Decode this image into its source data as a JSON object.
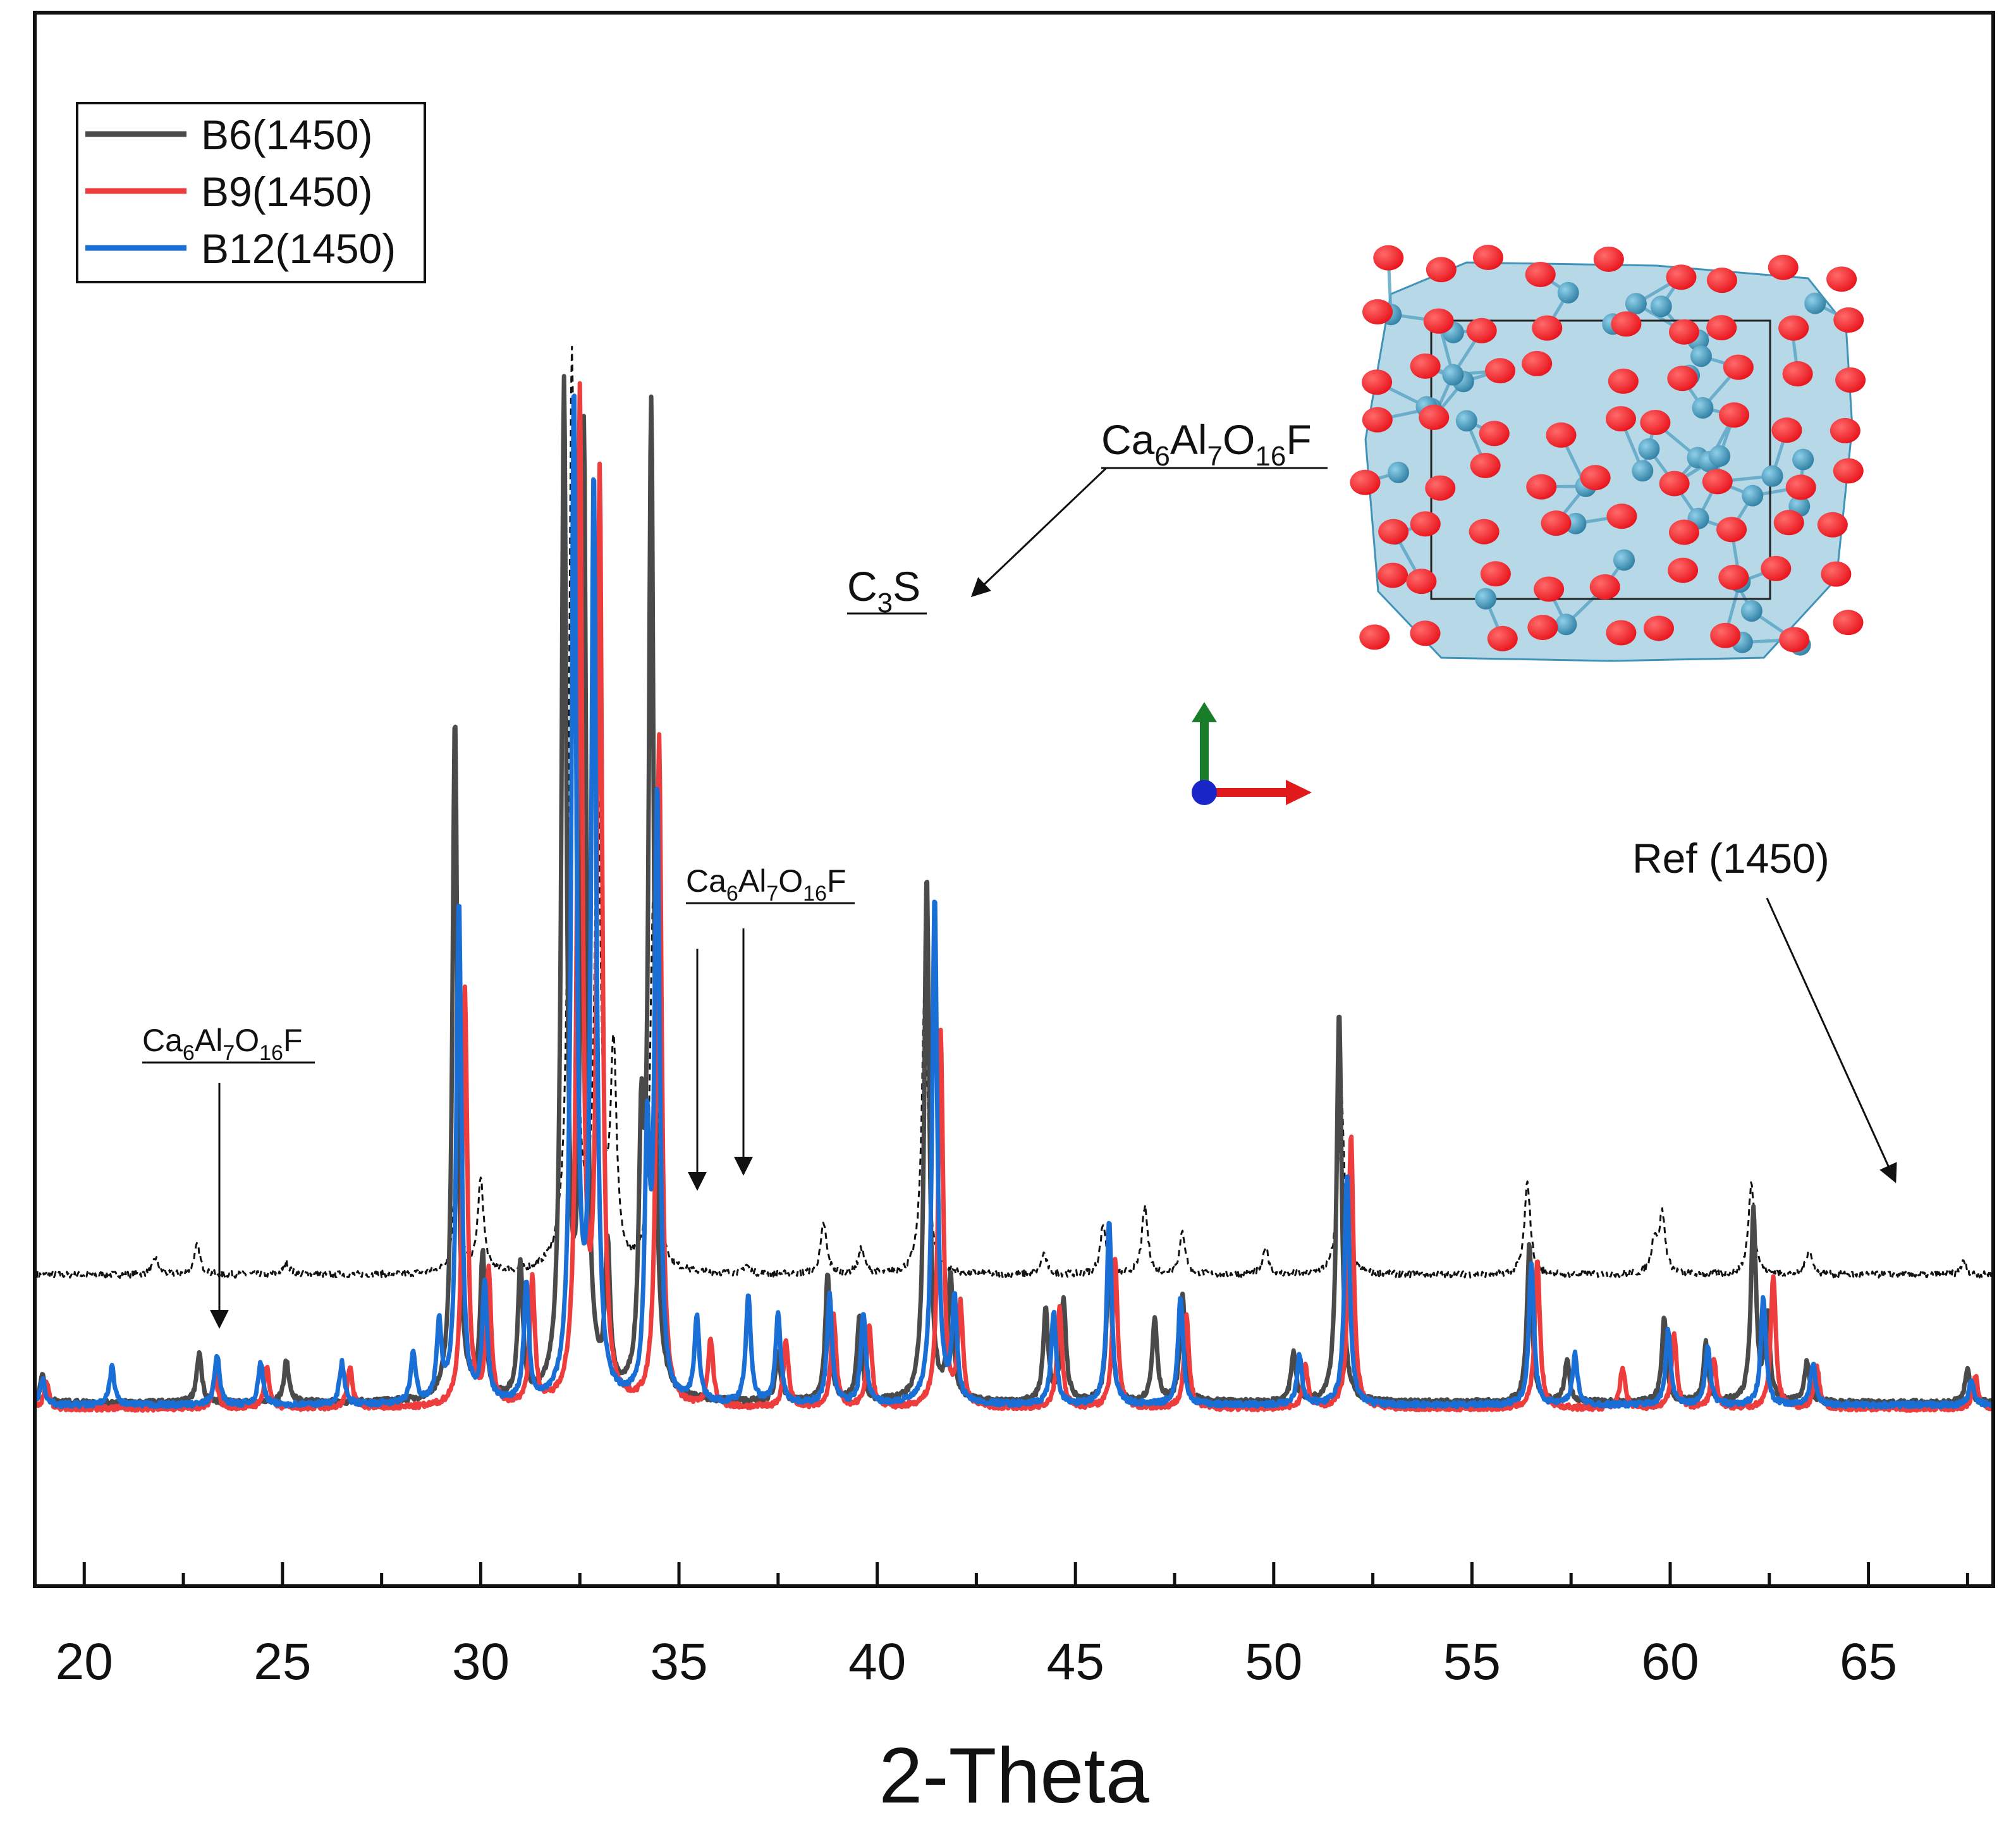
{
  "chart_data": {
    "type": "line",
    "title": "",
    "xlabel": "2-Theta",
    "ylabel": "",
    "xlim": [
      18.8,
      68.1
    ],
    "ylim": [
      0,
      1
    ],
    "xticks": [
      20,
      25,
      30,
      35,
      40,
      45,
      50,
      55,
      60,
      65
    ],
    "xtick_labels": [
      "20",
      "25",
      "30",
      "35",
      "40",
      "45",
      "50",
      "55",
      "60",
      "65"
    ],
    "grid": false,
    "legend_position": "top-left",
    "legend": [
      {
        "label": "B6(1450)",
        "color": "#4a4a4a"
      },
      {
        "label": "B9(1450)",
        "color": "#ee3d3d"
      },
      {
        "label": "B12(1450)",
        "color": "#1a6fd6"
      }
    ],
    "series": [
      {
        "name": "B6(1450)",
        "color": "#4a4a4a",
        "baseline": 0.085,
        "peaks": [
          [
            18.95,
            0.035
          ],
          [
            22.9,
            0.06
          ],
          [
            25.1,
            0.05
          ],
          [
            29.35,
            0.82
          ],
          [
            30.05,
            0.17
          ],
          [
            31.0,
            0.16
          ],
          [
            32.1,
            1.2
          ],
          [
            32.6,
            1.15
          ],
          [
            33.2,
            0.17
          ],
          [
            34.05,
            0.28
          ],
          [
            34.3,
            1.18
          ],
          [
            37.5,
            0.06
          ],
          [
            38.75,
            0.15
          ],
          [
            39.55,
            0.1
          ],
          [
            41.25,
            0.63
          ],
          [
            41.85,
            0.15
          ],
          [
            44.25,
            0.11
          ],
          [
            44.7,
            0.12
          ],
          [
            45.85,
            0.18
          ],
          [
            47.0,
            0.1
          ],
          [
            47.7,
            0.13
          ],
          [
            50.5,
            0.06
          ],
          [
            51.65,
            0.47
          ],
          [
            56.45,
            0.19
          ],
          [
            57.4,
            0.05
          ],
          [
            59.85,
            0.1
          ],
          [
            60.9,
            0.07
          ],
          [
            62.1,
            0.23
          ],
          [
            62.45,
            0.1
          ],
          [
            63.45,
            0.05
          ],
          [
            67.5,
            0.04
          ]
        ]
      },
      {
        "name": "B9(1450)",
        "color": "#ee3d3d",
        "baseline": 0.078,
        "peaks": [
          [
            19.05,
            0.03
          ],
          [
            23.3,
            0.04
          ],
          [
            24.6,
            0.05
          ],
          [
            26.7,
            0.05
          ],
          [
            29.6,
            0.5
          ],
          [
            30.2,
            0.16
          ],
          [
            31.3,
            0.15
          ],
          [
            32.5,
            1.2
          ],
          [
            33.0,
            1.1
          ],
          [
            34.5,
            0.8
          ],
          [
            35.8,
            0.08
          ],
          [
            37.7,
            0.08
          ],
          [
            38.9,
            0.11
          ],
          [
            39.8,
            0.1
          ],
          [
            41.6,
            0.45
          ],
          [
            42.1,
            0.12
          ],
          [
            44.6,
            0.12
          ],
          [
            46.0,
            0.18
          ],
          [
            47.8,
            0.11
          ],
          [
            50.8,
            0.05
          ],
          [
            51.95,
            0.33
          ],
          [
            56.65,
            0.18
          ],
          [
            58.8,
            0.05
          ],
          [
            60.1,
            0.09
          ],
          [
            61.1,
            0.06
          ],
          [
            62.6,
            0.16
          ],
          [
            63.7,
            0.05
          ],
          [
            67.7,
            0.04
          ]
        ]
      },
      {
        "name": "B12(1450)",
        "color": "#1a6fd6",
        "baseline": 0.082,
        "peaks": [
          [
            18.95,
            0.03
          ],
          [
            20.7,
            0.045
          ],
          [
            23.35,
            0.06
          ],
          [
            24.45,
            0.05
          ],
          [
            26.5,
            0.05
          ],
          [
            28.3,
            0.06
          ],
          [
            28.95,
            0.09
          ],
          [
            29.45,
            0.6
          ],
          [
            30.1,
            0.14
          ],
          [
            31.15,
            0.14
          ],
          [
            32.35,
            1.2
          ],
          [
            32.85,
            1.1
          ],
          [
            34.2,
            0.3
          ],
          [
            34.45,
            0.72
          ],
          [
            35.45,
            0.1
          ],
          [
            36.75,
            0.13
          ],
          [
            37.5,
            0.11
          ],
          [
            38.8,
            0.13
          ],
          [
            39.65,
            0.11
          ],
          [
            41.45,
            0.61
          ],
          [
            41.95,
            0.12
          ],
          [
            44.45,
            0.11
          ],
          [
            45.85,
            0.22
          ],
          [
            47.65,
            0.13
          ],
          [
            50.65,
            0.06
          ],
          [
            51.85,
            0.28
          ],
          [
            56.5,
            0.17
          ],
          [
            57.6,
            0.06
          ],
          [
            59.95,
            0.09
          ],
          [
            60.95,
            0.07
          ],
          [
            62.35,
            0.13
          ],
          [
            63.6,
            0.05
          ],
          [
            67.6,
            0.03
          ]
        ]
      },
      {
        "name": "Ref (1450)",
        "color": "#111111",
        "style": "dashed",
        "baseline": 0.238,
        "peaks": [
          [
            21.8,
            0.02
          ],
          [
            22.85,
            0.035
          ],
          [
            25.1,
            0.015
          ],
          [
            29.4,
            0.15
          ],
          [
            30.0,
            0.11
          ],
          [
            32.3,
            1.1
          ],
          [
            32.95,
            0.6
          ],
          [
            33.35,
            0.25
          ],
          [
            34.35,
            0.45
          ],
          [
            36.7,
            0.01
          ],
          [
            38.65,
            0.06
          ],
          [
            39.6,
            0.03
          ],
          [
            41.2,
            0.35
          ],
          [
            44.2,
            0.025
          ],
          [
            45.7,
            0.06
          ],
          [
            46.75,
            0.08
          ],
          [
            47.7,
            0.05
          ],
          [
            49.8,
            0.03
          ],
          [
            51.7,
            0.23
          ],
          [
            56.4,
            0.11
          ],
          [
            59.6,
            0.04
          ],
          [
            59.8,
            0.07
          ],
          [
            62.05,
            0.11
          ],
          [
            63.5,
            0.03
          ],
          [
            67.4,
            0.015
          ]
        ]
      }
    ],
    "annotations": [
      {
        "text": "Ca6Al7O16F",
        "target_x": 23.4
      },
      {
        "text": "Ca6Al7O16F",
        "target_x": [
          35.4,
          36.6
        ]
      },
      {
        "text": "C3S"
      },
      {
        "text": "Ca6Al7O16F"
      },
      {
        "text": "Ref (1450)"
      }
    ]
  },
  "labels": {
    "x_axis_title": "2-Theta",
    "legend_b6": "B6(1450)",
    "legend_b9": "B9(1450)",
    "legend_b12": "B12(1450)",
    "ann_ca_left": "Ca6Al7O16F",
    "ann_ca_mid": "Ca6Al7O16F",
    "ann_c3s": "C3S",
    "ann_ca_right": "Ca6Al7O16F",
    "ann_ref": "Ref (1450)",
    "ca_parts": {
      "a": "Ca",
      "b": "6",
      "c": "Al",
      "d": "7",
      "e": "O",
      "f": "16",
      "g": "F"
    },
    "c3s_parts": {
      "a": "C",
      "b": "3",
      "c": "S"
    }
  },
  "inset": {
    "name": "crystal structure",
    "colors": {
      "oxygen": "#e8141c",
      "cation": "#3f93b8",
      "polyhedra": "#7ab8d4",
      "axis_y": "#1a7d2a",
      "axis_x": "#e01a1a",
      "axis_z": "#1a26c8"
    }
  }
}
